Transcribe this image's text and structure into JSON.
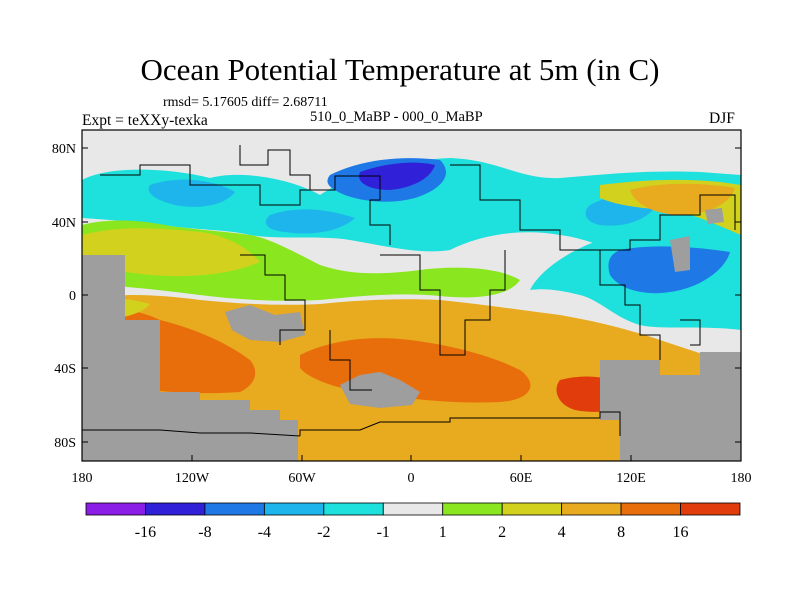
{
  "header": {
    "title": "Ocean Potential Temperature at 5m (in C)",
    "stats": "rmsd= 5.17605  diff= 2.68711",
    "subtitle": "510_0_MaBP - 000_0_MaBP",
    "experiment": "Expt = teXXy-texka",
    "season": "DJF"
  },
  "axes": {
    "x_ticks": [
      "180",
      "120W",
      "60W",
      "0",
      "60E",
      "120E",
      "180"
    ],
    "y_ticks": [
      "80N",
      "40N",
      "0",
      "40S",
      "80S"
    ]
  },
  "colorbar": {
    "labels": [
      "-16",
      "-8",
      "-4",
      "-2",
      "-1",
      "1",
      "2",
      "4",
      "8",
      "16"
    ],
    "colors": [
      "#8a1ee6",
      "#3020d8",
      "#1e78e6",
      "#1eb4ec",
      "#1ee0dc",
      "#e8e8e8",
      "#8ae61e",
      "#d2d21e",
      "#e8aa1e",
      "#e86e0c",
      "#e03c0c"
    ]
  },
  "legend_colors": {
    "land": "#9e9e9e"
  }
}
